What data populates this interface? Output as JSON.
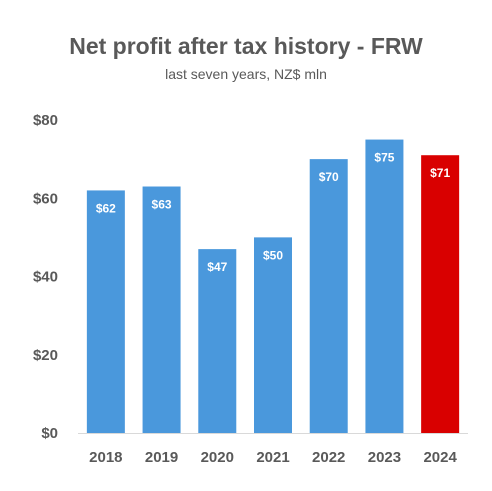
{
  "chart_data": {
    "type": "bar",
    "title": "Net profit after tax history - FRW",
    "subtitle": "last seven years, NZ$ mln",
    "xlabel": "",
    "ylabel": "",
    "categories": [
      "2018",
      "2019",
      "2020",
      "2021",
      "2022",
      "2023",
      "2024"
    ],
    "values": [
      62,
      63,
      47,
      50,
      70,
      75,
      71
    ],
    "data_labels": [
      "$62",
      "$63",
      "$47",
      "$50",
      "$70",
      "$75",
      "$71"
    ],
    "y_ticks": [
      0,
      20,
      40,
      60,
      80
    ],
    "y_tick_labels": [
      "$0",
      "$20",
      "$40",
      "$60",
      "$80"
    ],
    "ylim": [
      0,
      80
    ],
    "grid": false,
    "legend": "none",
    "colors": {
      "default_bar": "#4a98dc",
      "highlight_bar": "#d90000",
      "highlight_category": "2024",
      "text": "#595959",
      "axis": "#d9d9d9"
    }
  }
}
